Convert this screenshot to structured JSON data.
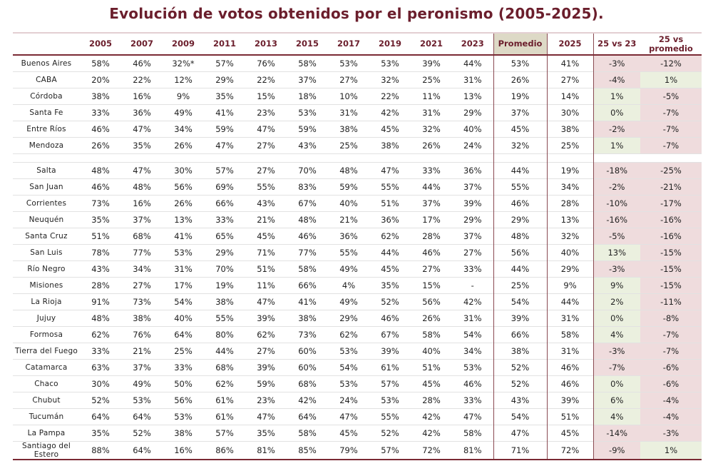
{
  "title": "Evolución de votos obtenidos por el peronismo (2005-2025).",
  "colors": {
    "title": "#6b1e2c",
    "negative_bg": "#efdcdd",
    "positive_bg": "#ebf0df",
    "promedio_header_bg": "#ddd9c6"
  },
  "headers": [
    "",
    "2005",
    "2007",
    "2009",
    "2011",
    "2013",
    "2015",
    "2017",
    "2019",
    "2021",
    "2023",
    "Promedio",
    "2025",
    "25 vs 23",
    "25 vs promedio"
  ],
  "group1": [
    {
      "province": "Buenos Aires",
      "values": [
        "58%",
        "46%",
        "32%*",
        "57%",
        "76%",
        "58%",
        "53%",
        "53%",
        "39%",
        "44%",
        "53%",
        "41%",
        "-3%",
        "-12%"
      ]
    },
    {
      "province": "CABA",
      "values": [
        "20%",
        "22%",
        "12%",
        "29%",
        "22%",
        "37%",
        "27%",
        "32%",
        "25%",
        "31%",
        "26%",
        "27%",
        "-4%",
        "1%"
      ]
    },
    {
      "province": "Córdoba",
      "values": [
        "38%",
        "16%",
        "9%",
        "35%",
        "15%",
        "18%",
        "10%",
        "22%",
        "11%",
        "13%",
        "19%",
        "14%",
        "1%",
        "-5%"
      ]
    },
    {
      "province": "Santa Fe",
      "values": [
        "33%",
        "36%",
        "49%",
        "41%",
        "23%",
        "53%",
        "31%",
        "42%",
        "31%",
        "29%",
        "37%",
        "30%",
        "0%",
        "-7%"
      ]
    },
    {
      "province": "Entre Ríos",
      "values": [
        "46%",
        "47%",
        "34%",
        "59%",
        "47%",
        "59%",
        "38%",
        "45%",
        "32%",
        "40%",
        "45%",
        "38%",
        "-2%",
        "-7%"
      ]
    },
    {
      "province": "Mendoza",
      "values": [
        "26%",
        "35%",
        "26%",
        "47%",
        "27%",
        "43%",
        "25%",
        "38%",
        "26%",
        "24%",
        "32%",
        "25%",
        "1%",
        "-7%"
      ]
    }
  ],
  "group2": [
    {
      "province": "Salta",
      "values": [
        "48%",
        "47%",
        "30%",
        "57%",
        "27%",
        "70%",
        "48%",
        "47%",
        "33%",
        "36%",
        "44%",
        "19%",
        "-18%",
        "-25%"
      ]
    },
    {
      "province": "San Juan",
      "values": [
        "46%",
        "48%",
        "56%",
        "69%",
        "55%",
        "83%",
        "59%",
        "55%",
        "44%",
        "37%",
        "55%",
        "34%",
        "-2%",
        "-21%"
      ]
    },
    {
      "province": "Corrientes",
      "values": [
        "73%",
        "16%",
        "26%",
        "66%",
        "43%",
        "67%",
        "40%",
        "51%",
        "37%",
        "39%",
        "46%",
        "28%",
        "-10%",
        "-17%"
      ]
    },
    {
      "province": "Neuquén",
      "values": [
        "35%",
        "37%",
        "13%",
        "33%",
        "21%",
        "48%",
        "21%",
        "36%",
        "17%",
        "29%",
        "29%",
        "13%",
        "-16%",
        "-16%"
      ]
    },
    {
      "province": "Santa Cruz",
      "values": [
        "51%",
        "68%",
        "41%",
        "65%",
        "45%",
        "46%",
        "36%",
        "62%",
        "28%",
        "37%",
        "48%",
        "32%",
        "-5%",
        "-16%"
      ]
    },
    {
      "province": "San Luis",
      "values": [
        "78%",
        "77%",
        "53%",
        "29%",
        "71%",
        "77%",
        "55%",
        "44%",
        "46%",
        "27%",
        "56%",
        "40%",
        "13%",
        "-15%"
      ]
    },
    {
      "province": "Río Negro",
      "values": [
        "43%",
        "34%",
        "31%",
        "70%",
        "51%",
        "58%",
        "49%",
        "45%",
        "27%",
        "33%",
        "44%",
        "29%",
        "-3%",
        "-15%"
      ]
    },
    {
      "province": "Misiones",
      "values": [
        "28%",
        "27%",
        "17%",
        "19%",
        "11%",
        "66%",
        "4%",
        "35%",
        "15%",
        "-",
        "25%",
        "9%",
        "9%",
        "-15%"
      ]
    },
    {
      "province": "La Rioja",
      "values": [
        "91%",
        "73%",
        "54%",
        "38%",
        "47%",
        "41%",
        "49%",
        "52%",
        "56%",
        "42%",
        "54%",
        "44%",
        "2%",
        "-11%"
      ]
    },
    {
      "province": "Jujuy",
      "values": [
        "48%",
        "38%",
        "40%",
        "55%",
        "39%",
        "38%",
        "29%",
        "46%",
        "26%",
        "31%",
        "39%",
        "31%",
        "0%",
        "-8%"
      ]
    },
    {
      "province": "Formosa",
      "values": [
        "62%",
        "76%",
        "64%",
        "80%",
        "62%",
        "73%",
        "62%",
        "67%",
        "58%",
        "54%",
        "66%",
        "58%",
        "4%",
        "-7%"
      ]
    },
    {
      "province": "Tierra del Fuego",
      "values": [
        "33%",
        "21%",
        "25%",
        "44%",
        "27%",
        "60%",
        "53%",
        "39%",
        "40%",
        "34%",
        "38%",
        "31%",
        "-3%",
        "-7%"
      ]
    },
    {
      "province": "Catamarca",
      "values": [
        "63%",
        "37%",
        "33%",
        "68%",
        "39%",
        "60%",
        "54%",
        "61%",
        "51%",
        "53%",
        "52%",
        "46%",
        "-7%",
        "-6%"
      ]
    },
    {
      "province": "Chaco",
      "values": [
        "30%",
        "49%",
        "50%",
        "62%",
        "59%",
        "68%",
        "53%",
        "57%",
        "45%",
        "46%",
        "52%",
        "46%",
        "0%",
        "-6%"
      ]
    },
    {
      "province": "Chubut",
      "values": [
        "52%",
        "53%",
        "56%",
        "61%",
        "23%",
        "42%",
        "24%",
        "53%",
        "28%",
        "33%",
        "43%",
        "39%",
        "6%",
        "-4%"
      ]
    },
    {
      "province": "Tucumán",
      "values": [
        "64%",
        "64%",
        "53%",
        "61%",
        "47%",
        "64%",
        "47%",
        "55%",
        "42%",
        "47%",
        "54%",
        "51%",
        "4%",
        "-4%"
      ]
    },
    {
      "province": "La Pampa",
      "values": [
        "35%",
        "52%",
        "38%",
        "57%",
        "35%",
        "58%",
        "45%",
        "52%",
        "42%",
        "58%",
        "47%",
        "45%",
        "-14%",
        "-3%"
      ]
    },
    {
      "province": "Santiago del Estero",
      "values": [
        "88%",
        "64%",
        "16%",
        "86%",
        "81%",
        "85%",
        "79%",
        "57%",
        "72%",
        "81%",
        "71%",
        "72%",
        "-9%",
        "1%"
      ]
    }
  ]
}
